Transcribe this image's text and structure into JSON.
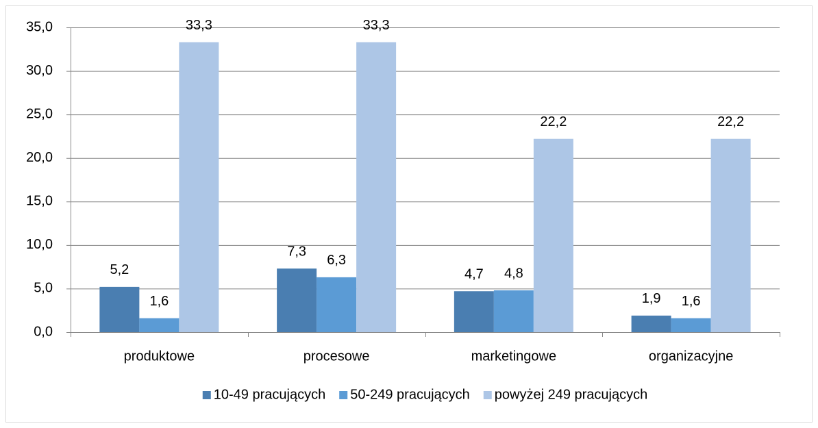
{
  "chart_data": {
    "type": "bar",
    "categories": [
      "produktowe",
      "procesowe",
      "marketingowe",
      "organizacyjne"
    ],
    "series": [
      {
        "name": "10-49 pracujących",
        "color": "#4a7eb1",
        "values": [
          5.2,
          7.3,
          4.7,
          1.9
        ],
        "value_labels": [
          "5,2",
          "7,3",
          "4,7",
          "1,9"
        ]
      },
      {
        "name": "50-249 pracujących",
        "color": "#5b9bd5",
        "values": [
          1.6,
          6.3,
          4.8,
          1.6
        ],
        "value_labels": [
          "1,6",
          "6,3",
          "4,8",
          "1,6"
        ]
      },
      {
        "name": "powyżej 249 pracujących",
        "color": "#adc6e6",
        "values": [
          33.3,
          33.3,
          22.2,
          22.2
        ],
        "value_labels": [
          "33,3",
          "33,3",
          "22,2",
          "22,2"
        ]
      }
    ],
    "ylim": [
      0,
      35
    ],
    "yticks": [
      {
        "value": 0,
        "label": "0,0"
      },
      {
        "value": 5,
        "label": "5,0"
      },
      {
        "value": 10,
        "label": "10,0"
      },
      {
        "value": 15,
        "label": "15,0"
      },
      {
        "value": 20,
        "label": "20,0"
      },
      {
        "value": 25,
        "label": "25,0"
      },
      {
        "value": 30,
        "label": "30,0"
      },
      {
        "value": 35,
        "label": "35,0"
      }
    ],
    "grid": true,
    "legend": "bottom"
  }
}
